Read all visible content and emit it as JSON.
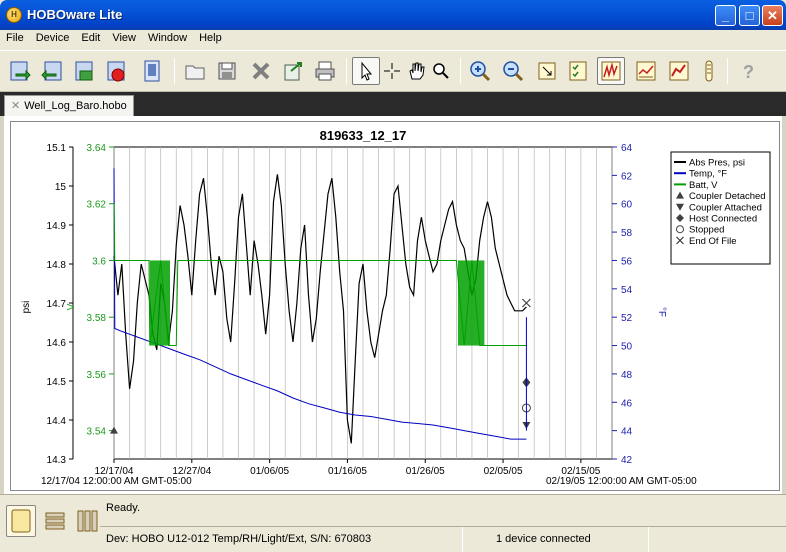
{
  "window": {
    "title": "HOBOware Lite",
    "app_icon": "hobo-logo-icon",
    "buttons": [
      "minimize",
      "maximize",
      "close"
    ]
  },
  "menu": [
    "File",
    "Device",
    "Edit",
    "View",
    "Window",
    "Help"
  ],
  "toolbar": {
    "icons": [
      "launch-device-icon",
      "readout-device-icon",
      "status-device-icon",
      "stop-device-icon",
      "device-info-icon",
      "open-file-icon",
      "save-icon",
      "delete-icon",
      "export-icon",
      "print-icon",
      "pointer-tool-icon",
      "crosshair-tool-icon",
      "hand-tool-icon",
      "zoom-tool-icon",
      "zoom-in-icon",
      "zoom-out-icon",
      "select-area-icon",
      "checklist-icon",
      "graph-view-icon",
      "graph-settings-icon",
      "graph-edit-icon",
      "thermometer-icon",
      "help-icon"
    ]
  },
  "tab": {
    "label": "Well_Log_Baro.hobo"
  },
  "chart_data": {
    "type": "line",
    "title": "819633_12_17",
    "x_tick_labels": [
      "12/17/04",
      "12/27/04",
      "01/06/05",
      "01/16/05",
      "01/26/05",
      "02/05/05",
      "02/15/05"
    ],
    "x_start_label": "12/17/04 12:00:00 AM GMT-05:00",
    "x_end_label": "02/19/05 12:00:00 AM GMT-05:00",
    "axes": {
      "psi": {
        "label": "psi",
        "ticks": [
          "15.1",
          "15",
          "14.9",
          "14.8",
          "14.7",
          "14.6",
          "14.5",
          "14.4",
          "14.3"
        ],
        "color": "#000000",
        "range": [
          14.3,
          15.1
        ]
      },
      "volts": {
        "label": "V",
        "ticks": [
          "3.64",
          "3.62",
          "3.6",
          "3.58",
          "3.56",
          "3.54"
        ],
        "color": "#1a9a1a",
        "range": [
          3.53,
          3.64
        ]
      },
      "temp": {
        "label": "°F",
        "ticks": [
          "64",
          "62",
          "60",
          "58",
          "56",
          "54",
          "52",
          "50",
          "48",
          "46",
          "44",
          "42"
        ],
        "color": "#2020b0",
        "range": [
          42,
          64
        ]
      }
    },
    "legend": [
      {
        "label": "Abs Pres, psi",
        "marker": "line",
        "color": "#000000"
      },
      {
        "label": "Temp, °F",
        "marker": "line",
        "color": "#0000c0"
      },
      {
        "label": "Batt, V",
        "marker": "line",
        "color": "#00a000"
      },
      {
        "label": "Coupler Detached",
        "marker": "triangle-up"
      },
      {
        "label": "Coupler Attached",
        "marker": "triangle-down"
      },
      {
        "label": "Host Connected",
        "marker": "diamond"
      },
      {
        "label": "Stopped",
        "marker": "circle"
      },
      {
        "label": "End Of File",
        "marker": "x"
      }
    ],
    "legend_position": "top-right",
    "grid": true,
    "series": [
      {
        "name": "Abs Pres, psi",
        "color": "#000000",
        "x_days": [
          0,
          0.5,
          1,
          1.5,
          2,
          2.5,
          3,
          3.5,
          4,
          4.5,
          5,
          5.5,
          6,
          6.5,
          7,
          7.5,
          8,
          8.5,
          9,
          9.5,
          10,
          10.5,
          11,
          11.5,
          12,
          12.5,
          13,
          13.5,
          14,
          14.5,
          15,
          15.5,
          16,
          16.5,
          17,
          17.5,
          18,
          18.5,
          19,
          19.5,
          20,
          20.5,
          21,
          21.5,
          22,
          22.5,
          23,
          23.5,
          24,
          24.5,
          25,
          25.5,
          26,
          26.5,
          27,
          27.5,
          28,
          28.5,
          29,
          29.5,
          30,
          30.5,
          31,
          31.5,
          32,
          32.5,
          33,
          33.5,
          34,
          34.5,
          35,
          35.5,
          36,
          36.5,
          37,
          37.5,
          38,
          38.5,
          39,
          39.5,
          40,
          40.5,
          41,
          41.5,
          42,
          42.5,
          43,
          43.5,
          44,
          44.5,
          45,
          45.5,
          46,
          46.5,
          47,
          47.5,
          48,
          48.5,
          49,
          49.5,
          50,
          50.5,
          51,
          51.5,
          52,
          52.5,
          53
        ],
        "values": [
          14.82,
          14.72,
          14.8,
          14.62,
          14.48,
          14.55,
          14.7,
          14.8,
          14.76,
          14.72,
          14.62,
          14.58,
          14.75,
          14.7,
          14.6,
          14.68,
          14.85,
          14.95,
          14.9,
          14.82,
          14.72,
          14.86,
          14.98,
          15.02,
          14.92,
          14.8,
          14.72,
          14.82,
          14.78,
          14.66,
          14.6,
          14.75,
          14.92,
          14.98,
          14.85,
          14.72,
          14.86,
          14.8,
          14.72,
          14.62,
          14.72,
          14.96,
          15.03,
          14.95,
          14.8,
          14.68,
          14.6,
          14.7,
          14.84,
          14.9,
          14.72,
          14.6,
          14.66,
          14.78,
          14.88,
          14.98,
          15.02,
          14.92,
          14.78,
          14.68,
          14.4,
          14.34,
          14.55,
          14.75,
          14.8,
          14.68,
          14.6,
          14.56,
          14.62,
          14.68,
          14.72,
          14.84,
          14.98,
          15.0,
          14.9,
          14.8,
          14.74,
          14.72,
          14.86,
          14.92,
          14.86,
          14.82,
          14.78,
          14.8,
          14.86,
          14.9,
          14.94,
          14.96,
          14.9,
          14.86,
          14.84,
          14.78,
          14.72,
          14.76,
          14.86,
          14.92,
          14.96,
          14.92,
          14.84,
          14.8,
          14.76,
          14.72,
          14.7,
          14.68,
          14.68,
          14.68,
          14.69
        ]
      },
      {
        "name": "Temp, °F",
        "color": "#0000c0",
        "x_days": [
          0,
          0.1,
          1,
          3,
          5,
          7,
          9,
          11,
          13,
          15,
          17,
          19,
          21,
          23,
          25,
          27,
          29,
          31,
          33,
          35,
          37,
          39,
          41,
          43,
          45,
          47,
          49,
          51,
          53
        ],
        "values": [
          62.5,
          51.2,
          51.0,
          50.6,
          50.2,
          49.8,
          49.4,
          49.0,
          48.5,
          48.0,
          47.6,
          47.2,
          46.8,
          46.3,
          45.9,
          45.6,
          45.3,
          45.1,
          45.0,
          44.8,
          44.6,
          44.5,
          44.4,
          44.2,
          44.0,
          43.8,
          43.6,
          43.4,
          43.4
        ]
      },
      {
        "name": "Batt, V",
        "color": "#00a000",
        "x_days": [
          0,
          0.1,
          0.2,
          0.3,
          1,
          4.5,
          4.6,
          6,
          7,
          8,
          8.2,
          44,
          45,
          46,
          47,
          48,
          53
        ],
        "values": [
          3.62,
          3.6,
          3.6,
          3.6,
          3.6,
          3.6,
          3.57,
          3.6,
          3.57,
          3.57,
          3.6,
          3.6,
          3.57,
          3.6,
          3.57,
          3.57,
          3.57
        ]
      }
    ],
    "events": [
      {
        "type": "Coupler Detached",
        "x_days": 0,
        "y": 3.54
      },
      {
        "type": "Host Connected",
        "x_days": 53,
        "y": 3.557
      },
      {
        "type": "Stopped",
        "x_days": 53,
        "y": 3.548
      },
      {
        "type": "Coupler Attached",
        "x_days": 53,
        "y": 3.542
      },
      {
        "type": "End Of File",
        "x_days": 53,
        "y": 14.7
      }
    ]
  },
  "status": {
    "ready": "Ready.",
    "device": "Dev: HOBO U12-012 Temp/RH/Light/Ext, S/N: 670803",
    "connection": "1 device connected"
  }
}
